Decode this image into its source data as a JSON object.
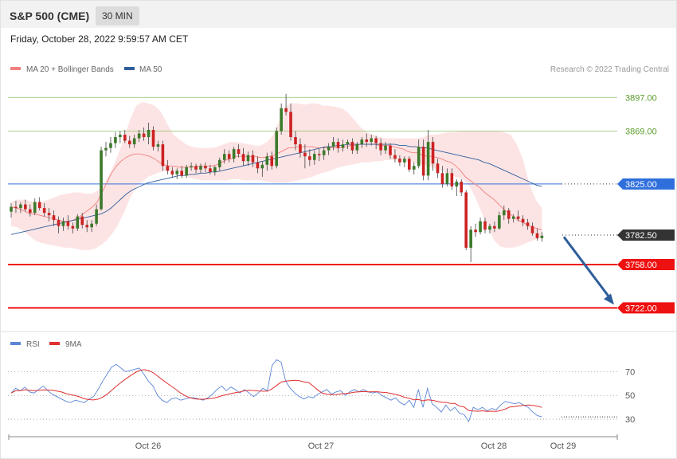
{
  "header": {
    "symbol": "S&P 500 (CME)",
    "timeframe": "30 MIN"
  },
  "timestamp": "Friday, October 28, 2022 9:59:57 AM CET",
  "legend": {
    "bollinger": "MA 20 + Bollinger Bands",
    "ma50": "MA 50",
    "credit": "Research © 2022 Trading Central",
    "rsi": "RSI",
    "rsi_ma": "9MA"
  },
  "colors": {
    "bull": "#3a7a2a",
    "bear": "#cc2222",
    "band": "#fde1e1",
    "ma20": "#f08080",
    "ma50": "#2f5e9c",
    "resistance": "#8cc06a",
    "support": "#ee1111",
    "pivot": "#2f6fdc",
    "price": "#333333",
    "arrow": "#2f5e9c",
    "rsi": "#5b86d6",
    "rsi_ma": "#e03030"
  },
  "chart_data": {
    "type": "candlestick",
    "ylim": [
      3705,
      3925
    ],
    "x_ticks": [
      "Oct 26",
      "Oct 27",
      "Oct 28",
      "Oct 29"
    ],
    "levels": [
      {
        "label": "3897.00",
        "value": 3897,
        "role": "resistance"
      },
      {
        "label": "3869.00",
        "value": 3869,
        "role": "resistance"
      },
      {
        "label": "3825.00",
        "value": 3825,
        "role": "pivot"
      },
      {
        "label": "3782.50",
        "value": 3782.5,
        "role": "last"
      },
      {
        "label": "3758.00",
        "value": 3758,
        "role": "support"
      },
      {
        "label": "3722.00",
        "value": 3722,
        "role": "support"
      }
    ],
    "forecast_arrow": {
      "from": 3781,
      "to": 3722
    },
    "candles": [
      {
        "o": 3802,
        "h": 3809,
        "l": 3797,
        "c": 3806
      },
      {
        "o": 3806,
        "h": 3811,
        "l": 3801,
        "c": 3805
      },
      {
        "o": 3805,
        "h": 3810,
        "l": 3801,
        "c": 3808
      },
      {
        "o": 3808,
        "h": 3812,
        "l": 3802,
        "c": 3804
      },
      {
        "o": 3804,
        "h": 3808,
        "l": 3798,
        "c": 3801
      },
      {
        "o": 3801,
        "h": 3813,
        "l": 3799,
        "c": 3810
      },
      {
        "o": 3810,
        "h": 3814,
        "l": 3803,
        "c": 3805
      },
      {
        "o": 3805,
        "h": 3809,
        "l": 3798,
        "c": 3801
      },
      {
        "o": 3801,
        "h": 3805,
        "l": 3794,
        "c": 3799
      },
      {
        "o": 3799,
        "h": 3803,
        "l": 3790,
        "c": 3795
      },
      {
        "o": 3795,
        "h": 3798,
        "l": 3784,
        "c": 3790
      },
      {
        "o": 3790,
        "h": 3797,
        "l": 3786,
        "c": 3794
      },
      {
        "o": 3794,
        "h": 3799,
        "l": 3787,
        "c": 3790
      },
      {
        "o": 3790,
        "h": 3793,
        "l": 3784,
        "c": 3788
      },
      {
        "o": 3788,
        "h": 3800,
        "l": 3786,
        "c": 3798
      },
      {
        "o": 3798,
        "h": 3801,
        "l": 3788,
        "c": 3791
      },
      {
        "o": 3791,
        "h": 3795,
        "l": 3785,
        "c": 3789
      },
      {
        "o": 3789,
        "h": 3795,
        "l": 3785,
        "c": 3792
      },
      {
        "o": 3792,
        "h": 3808,
        "l": 3790,
        "c": 3804
      },
      {
        "o": 3804,
        "h": 3856,
        "l": 3803,
        "c": 3853
      },
      {
        "o": 3853,
        "h": 3860,
        "l": 3848,
        "c": 3855
      },
      {
        "o": 3855,
        "h": 3864,
        "l": 3851,
        "c": 3859
      },
      {
        "o": 3859,
        "h": 3868,
        "l": 3855,
        "c": 3864
      },
      {
        "o": 3864,
        "h": 3869,
        "l": 3859,
        "c": 3866
      },
      {
        "o": 3866,
        "h": 3870,
        "l": 3859,
        "c": 3861
      },
      {
        "o": 3861,
        "h": 3865,
        "l": 3855,
        "c": 3858
      },
      {
        "o": 3858,
        "h": 3866,
        "l": 3855,
        "c": 3863
      },
      {
        "o": 3863,
        "h": 3870,
        "l": 3860,
        "c": 3867
      },
      {
        "o": 3867,
        "h": 3872,
        "l": 3861,
        "c": 3864
      },
      {
        "o": 3864,
        "h": 3876,
        "l": 3858,
        "c": 3870
      },
      {
        "o": 3870,
        "h": 3873,
        "l": 3853,
        "c": 3856
      },
      {
        "o": 3856,
        "h": 3861,
        "l": 3852,
        "c": 3858
      },
      {
        "o": 3858,
        "h": 3861,
        "l": 3836,
        "c": 3840
      },
      {
        "o": 3840,
        "h": 3845,
        "l": 3833,
        "c": 3836
      },
      {
        "o": 3836,
        "h": 3839,
        "l": 3830,
        "c": 3833
      },
      {
        "o": 3833,
        "h": 3838,
        "l": 3829,
        "c": 3836
      },
      {
        "o": 3836,
        "h": 3840,
        "l": 3830,
        "c": 3832
      },
      {
        "o": 3832,
        "h": 3841,
        "l": 3830,
        "c": 3839
      },
      {
        "o": 3839,
        "h": 3843,
        "l": 3836,
        "c": 3840
      },
      {
        "o": 3840,
        "h": 3842,
        "l": 3834,
        "c": 3837
      },
      {
        "o": 3837,
        "h": 3842,
        "l": 3834,
        "c": 3840
      },
      {
        "o": 3840,
        "h": 3843,
        "l": 3835,
        "c": 3838
      },
      {
        "o": 3838,
        "h": 3841,
        "l": 3833,
        "c": 3835
      },
      {
        "o": 3835,
        "h": 3840,
        "l": 3832,
        "c": 3839
      },
      {
        "o": 3839,
        "h": 3847,
        "l": 3836,
        "c": 3845
      },
      {
        "o": 3845,
        "h": 3854,
        "l": 3842,
        "c": 3850
      },
      {
        "o": 3850,
        "h": 3853,
        "l": 3843,
        "c": 3846
      },
      {
        "o": 3846,
        "h": 3856,
        "l": 3843,
        "c": 3854
      },
      {
        "o": 3854,
        "h": 3858,
        "l": 3847,
        "c": 3850
      },
      {
        "o": 3850,
        "h": 3855,
        "l": 3840,
        "c": 3844
      },
      {
        "o": 3844,
        "h": 3852,
        "l": 3840,
        "c": 3849
      },
      {
        "o": 3849,
        "h": 3853,
        "l": 3839,
        "c": 3843
      },
      {
        "o": 3843,
        "h": 3848,
        "l": 3834,
        "c": 3838
      },
      {
        "o": 3838,
        "h": 3844,
        "l": 3831,
        "c": 3841
      },
      {
        "o": 3841,
        "h": 3851,
        "l": 3836,
        "c": 3848
      },
      {
        "o": 3848,
        "h": 3852,
        "l": 3837,
        "c": 3840
      },
      {
        "o": 3840,
        "h": 3872,
        "l": 3838,
        "c": 3869
      },
      {
        "o": 3869,
        "h": 3892,
        "l": 3866,
        "c": 3888
      },
      {
        "o": 3888,
        "h": 3900,
        "l": 3882,
        "c": 3885
      },
      {
        "o": 3885,
        "h": 3892,
        "l": 3861,
        "c": 3864
      },
      {
        "o": 3864,
        "h": 3869,
        "l": 3853,
        "c": 3858
      },
      {
        "o": 3858,
        "h": 3863,
        "l": 3847,
        "c": 3851
      },
      {
        "o": 3851,
        "h": 3858,
        "l": 3838,
        "c": 3848
      },
      {
        "o": 3848,
        "h": 3854,
        "l": 3840,
        "c": 3845
      },
      {
        "o": 3845,
        "h": 3853,
        "l": 3841,
        "c": 3850
      },
      {
        "o": 3850,
        "h": 3854,
        "l": 3844,
        "c": 3849
      },
      {
        "o": 3849,
        "h": 3856,
        "l": 3845,
        "c": 3853
      },
      {
        "o": 3853,
        "h": 3859,
        "l": 3849,
        "c": 3856
      },
      {
        "o": 3856,
        "h": 3864,
        "l": 3853,
        "c": 3860
      },
      {
        "o": 3860,
        "h": 3863,
        "l": 3851,
        "c": 3855
      },
      {
        "o": 3855,
        "h": 3862,
        "l": 3852,
        "c": 3858
      },
      {
        "o": 3858,
        "h": 3862,
        "l": 3854,
        "c": 3860
      },
      {
        "o": 3860,
        "h": 3863,
        "l": 3850,
        "c": 3853
      },
      {
        "o": 3853,
        "h": 3860,
        "l": 3850,
        "c": 3858
      },
      {
        "o": 3858,
        "h": 3864,
        "l": 3855,
        "c": 3862
      },
      {
        "o": 3862,
        "h": 3867,
        "l": 3856,
        "c": 3860
      },
      {
        "o": 3860,
        "h": 3866,
        "l": 3857,
        "c": 3863
      },
      {
        "o": 3863,
        "h": 3865,
        "l": 3854,
        "c": 3859
      },
      {
        "o": 3859,
        "h": 3863,
        "l": 3849,
        "c": 3853
      },
      {
        "o": 3853,
        "h": 3860,
        "l": 3850,
        "c": 3857
      },
      {
        "o": 3857,
        "h": 3859,
        "l": 3846,
        "c": 3849
      },
      {
        "o": 3849,
        "h": 3854,
        "l": 3843,
        "c": 3846
      },
      {
        "o": 3846,
        "h": 3849,
        "l": 3840,
        "c": 3843
      },
      {
        "o": 3843,
        "h": 3848,
        "l": 3839,
        "c": 3846
      },
      {
        "o": 3846,
        "h": 3848,
        "l": 3835,
        "c": 3837
      },
      {
        "o": 3837,
        "h": 3843,
        "l": 3833,
        "c": 3840
      },
      {
        "o": 3840,
        "h": 3862,
        "l": 3838,
        "c": 3856
      },
      {
        "o": 3856,
        "h": 3862,
        "l": 3828,
        "c": 3832
      },
      {
        "o": 3832,
        "h": 3870,
        "l": 3828,
        "c": 3860
      },
      {
        "o": 3860,
        "h": 3864,
        "l": 3836,
        "c": 3842
      },
      {
        "o": 3842,
        "h": 3846,
        "l": 3830,
        "c": 3834
      },
      {
        "o": 3834,
        "h": 3840,
        "l": 3822,
        "c": 3825
      },
      {
        "o": 3825,
        "h": 3838,
        "l": 3823,
        "c": 3834
      },
      {
        "o": 3834,
        "h": 3838,
        "l": 3820,
        "c": 3823
      },
      {
        "o": 3823,
        "h": 3829,
        "l": 3815,
        "c": 3827
      },
      {
        "o": 3827,
        "h": 3829,
        "l": 3815,
        "c": 3818
      },
      {
        "o": 3818,
        "h": 3820,
        "l": 3770,
        "c": 3772
      },
      {
        "o": 3772,
        "h": 3790,
        "l": 3760,
        "c": 3787
      },
      {
        "o": 3787,
        "h": 3792,
        "l": 3781,
        "c": 3785
      },
      {
        "o": 3785,
        "h": 3797,
        "l": 3783,
        "c": 3794
      },
      {
        "o": 3794,
        "h": 3797,
        "l": 3784,
        "c": 3787
      },
      {
        "o": 3787,
        "h": 3792,
        "l": 3784,
        "c": 3790
      },
      {
        "o": 3790,
        "h": 3794,
        "l": 3785,
        "c": 3788
      },
      {
        "o": 3788,
        "h": 3802,
        "l": 3787,
        "c": 3799
      },
      {
        "o": 3799,
        "h": 3807,
        "l": 3795,
        "c": 3803
      },
      {
        "o": 3803,
        "h": 3805,
        "l": 3792,
        "c": 3796
      },
      {
        "o": 3796,
        "h": 3800,
        "l": 3793,
        "c": 3798
      },
      {
        "o": 3798,
        "h": 3803,
        "l": 3794,
        "c": 3796
      },
      {
        "o": 3796,
        "h": 3799,
        "l": 3790,
        "c": 3793
      },
      {
        "o": 3793,
        "h": 3796,
        "l": 3787,
        "c": 3790
      },
      {
        "o": 3790,
        "h": 3793,
        "l": 3782,
        "c": 3784
      },
      {
        "o": 3784,
        "h": 3788,
        "l": 3778,
        "c": 3780
      },
      {
        "o": 3780,
        "h": 3785,
        "l": 3777,
        "c": 3782
      }
    ],
    "ma20": [
      3806,
      3805,
      3804,
      3802,
      3800,
      3800,
      3799,
      3798,
      3797,
      3796,
      3795,
      3794,
      3794,
      3795,
      3797,
      3800,
      3803,
      3806,
      3810,
      3818,
      3826,
      3834,
      3840,
      3844,
      3847,
      3849,
      3850,
      3850,
      3849,
      3848,
      3846,
      3843,
      3841,
      3840,
      3840,
      3839,
      3839,
      3839,
      3839,
      3840,
      3840,
      3840,
      3840,
      3841,
      3843,
      3845,
      3846,
      3848,
      3848,
      3848,
      3848,
      3848,
      3847,
      3847,
      3848,
      3849,
      3851,
      3853,
      3855,
      3855,
      3856,
      3856,
      3856,
      3856,
      3855,
      3855,
      3855,
      3855,
      3855,
      3855,
      3856,
      3857,
      3857,
      3858,
      3858,
      3858,
      3858,
      3857,
      3857,
      3857,
      3856,
      3855,
      3854,
      3852,
      3851,
      3851,
      3849,
      3848,
      3848,
      3847,
      3846,
      3844,
      3843,
      3840,
      3836,
      3831,
      3828,
      3825,
      3822,
      3818,
      3815,
      3812,
      3808,
      3804,
      3801,
      3798,
      3795,
      3793,
      3791,
      3789,
      3788,
      3787
    ],
    "bb_upper": [
      3810,
      3812,
      3812,
      3811,
      3810,
      3810,
      3812,
      3814,
      3816,
      3817,
      3818,
      3818,
      3817,
      3817,
      3820,
      3826,
      3836,
      3848,
      3862,
      3878,
      3890,
      3893,
      3892,
      3890,
      3885,
      3875,
      3866,
      3862,
      3858,
      3856,
      3855,
      3855,
      3855,
      3856,
      3858,
      3860,
      3860,
      3859,
      3858,
      3857,
      3857,
      3860,
      3866,
      3878,
      3890,
      3892,
      3892,
      3891,
      3892,
      3892,
      3890,
      3890,
      3889,
      3888,
      3884,
      3878,
      3872,
      3868,
      3866,
      3864,
      3863,
      3863,
      3863,
      3863,
      3863,
      3863,
      3864,
      3866,
      3866,
      3867,
      3868,
      3868,
      3869,
      3869,
      3869,
      3869,
      3869,
      3869,
      3869,
      3868,
      3866,
      3858,
      3845,
      3825,
      3812,
      3805
    ],
    "bb_lower": [
      3790,
      3789,
      3786,
      3782,
      3778,
      3776,
      3775,
      3774,
      3773,
      3772,
      3772,
      3771,
      3770,
      3770,
      3771,
      3774,
      3778,
      3784,
      3792,
      3802,
      3814,
      3823,
      3827,
      3831,
      3833,
      3835,
      3836,
      3836,
      3835,
      3833,
      3830,
      3829,
      3828,
      3828,
      3828,
      3828,
      3828,
      3829,
      3829,
      3828,
      3828,
      3828,
      3828,
      3827,
      3826,
      3826,
      3826,
      3827,
      3828,
      3829,
      3830,
      3832,
      3834,
      3835,
      3837,
      3839,
      3840,
      3841,
      3842,
      3843,
      3843,
      3844,
      3844,
      3845,
      3845,
      3845,
      3844,
      3843,
      3842,
      3841,
      3840,
      3838,
      3836,
      3834,
      3832,
      3830,
      3828,
      3822,
      3812,
      3800,
      3788,
      3778,
      3773,
      3772,
      3772,
      3773,
      3775,
      3777,
      3779,
      3780
    ],
    "ma50": [
      3783,
      3784,
      3785,
      3786,
      3787,
      3788,
      3789,
      3790,
      3791,
      3792,
      3793,
      3794,
      3795,
      3796,
      3797,
      3798,
      3799,
      3800,
      3802,
      3805,
      3809,
      3813,
      3817,
      3820,
      3822,
      3824,
      3826,
      3827,
      3828,
      3829,
      3830,
      3831,
      3832,
      3832,
      3833,
      3833,
      3834,
      3834,
      3835,
      3835,
      3836,
      3837,
      3838,
      3839,
      3840,
      3841,
      3842,
      3843,
      3844,
      3845,
      3846,
      3847,
      3848,
      3849,
      3850,
      3851,
      3852,
      3853,
      3854,
      3855,
      3856,
      3856,
      3857,
      3857,
      3858,
      3858,
      3858,
      3858,
      3858,
      3858,
      3858,
      3858,
      3858,
      3858,
      3857,
      3857,
      3856,
      3856,
      3855,
      3855,
      3854,
      3853,
      3852,
      3851,
      3850,
      3849,
      3848,
      3847,
      3846,
      3845,
      3843,
      3842,
      3840,
      3838,
      3836,
      3834,
      3832,
      3830,
      3828,
      3826,
      3824,
      3823
    ],
    "rsi": {
      "ylim": [
        20,
        85
      ],
      "ticks": [
        70,
        50,
        30
      ],
      "values": [
        52,
        56,
        54,
        57,
        53,
        52,
        55,
        58,
        54,
        51,
        49,
        47,
        45,
        44,
        46,
        45,
        44,
        47,
        49,
        55,
        62,
        68,
        74,
        76,
        73,
        70,
        71,
        72,
        73,
        68,
        62,
        58,
        50,
        46,
        44,
        47,
        48,
        46,
        47,
        48,
        48,
        47,
        46,
        48,
        51,
        55,
        58,
        54,
        57,
        55,
        52,
        55,
        52,
        49,
        52,
        56,
        54,
        75,
        80,
        78,
        62,
        56,
        52,
        49,
        47,
        49,
        48,
        51,
        53,
        55,
        51,
        53,
        54,
        50,
        53,
        55,
        53,
        55,
        53,
        52,
        53,
        50,
        48,
        46,
        48,
        44,
        42,
        46,
        40,
        55,
        40,
        56,
        43,
        40,
        36,
        42,
        37,
        40,
        35,
        34,
        28,
        40,
        38,
        40,
        37,
        39,
        38,
        42,
        45,
        44,
        43,
        44,
        42,
        40,
        36,
        33,
        32
      ]
    }
  }
}
